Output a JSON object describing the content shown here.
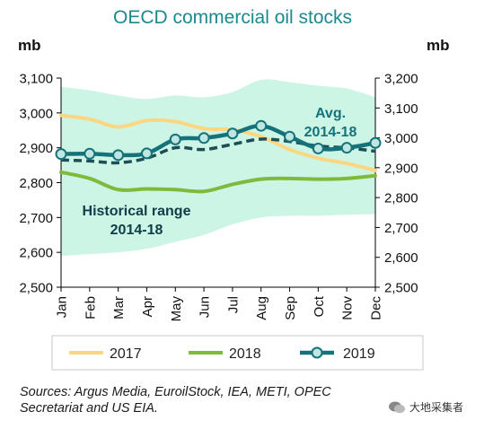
{
  "colors": {
    "band": "#ccf5e6",
    "y2017": "#fcd680",
    "y2018": "#7fba3c",
    "y2019": "#16727a",
    "marker_fill": "#bfe6e0",
    "avg": "#1e4d55",
    "title": "#1a8a8f",
    "annotation": "#0f3d47"
  },
  "title": "OECD commercial oil stocks",
  "chart_data": {
    "type": "line",
    "categories": [
      "Jan",
      "Feb",
      "Mar",
      "Apr",
      "May",
      "Jun",
      "Jul",
      "Aug",
      "Sep",
      "Oct",
      "Nov",
      "Dec"
    ],
    "ylim": [
      2500,
      3100
    ],
    "y2lim": [
      2500,
      3200
    ],
    "y_ticks": [
      "2,500",
      "2,600",
      "2,700",
      "2,800",
      "2,900",
      "3,000",
      "3,100"
    ],
    "y2_ticks": [
      "2,500",
      "2,600",
      "2,700",
      "2,800",
      "2,900",
      "3,000",
      "3,100",
      "3,200"
    ],
    "ylabel": "mb",
    "y2label": "mb",
    "grid": false,
    "legend_placement": "bottom",
    "range_band": {
      "label_line1": "Historical range",
      "label_line2": "2014-18",
      "upper": [
        3075,
        3065,
        3050,
        3040,
        3050,
        3045,
        3060,
        3095,
        3088,
        3078,
        3070,
        3045
      ],
      "lower": [
        2590,
        2595,
        2600,
        2610,
        2630,
        2650,
        2680,
        2700,
        2705,
        2705,
        2708,
        2710
      ]
    },
    "average": {
      "label_line1": "Avg.",
      "label_line2": "2014-18",
      "values": [
        2865,
        2862,
        2857,
        2870,
        2900,
        2895,
        2910,
        2925,
        2918,
        2905,
        2900,
        2890
      ]
    },
    "series": [
      {
        "name": "2017",
        "values": [
          2993,
          2982,
          2960,
          2978,
          2975,
          2955,
          2952,
          2932,
          2895,
          2870,
          2855,
          2835
        ]
      },
      {
        "name": "2018",
        "values": [
          2830,
          2812,
          2780,
          2782,
          2780,
          2775,
          2795,
          2810,
          2812,
          2810,
          2812,
          2820
        ]
      },
      {
        "name": "2019",
        "values": [
          2882,
          2883,
          2879,
          2884,
          2924,
          2928,
          2941,
          2963,
          2932,
          2898,
          2900,
          2914
        ]
      }
    ]
  },
  "sources": {
    "line1": "Sources: Argus Media, EuroilStock, IEA, METI, OPEC",
    "line2": "Secretariat and US EIA."
  },
  "watermark": "大地采集者"
}
